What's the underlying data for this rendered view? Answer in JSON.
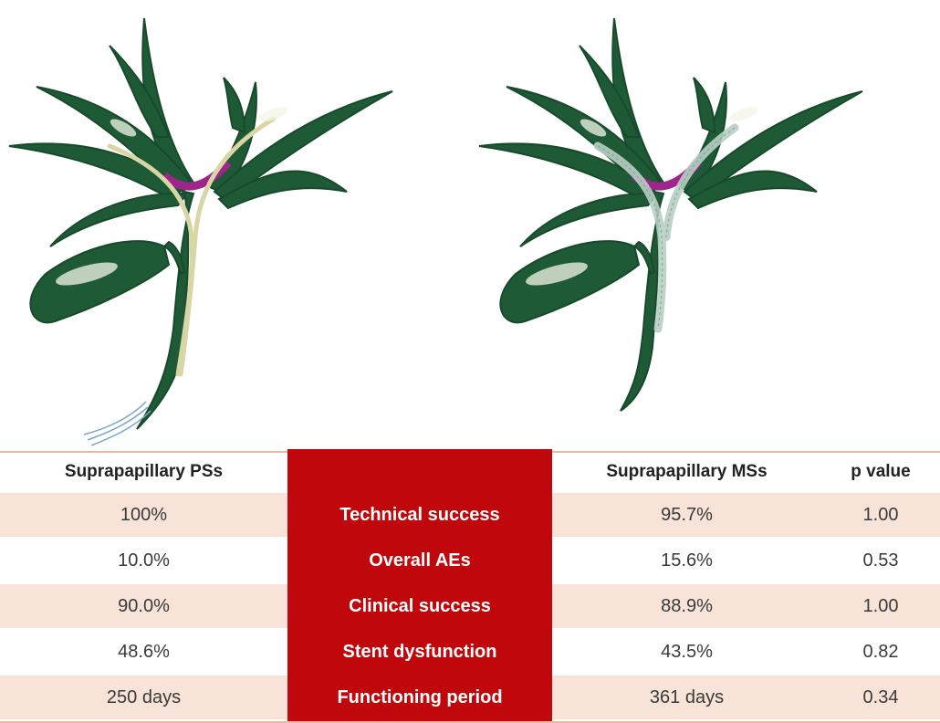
{
  "illustrations": {
    "left": "Biliary tree with suprapapillary plastic stents",
    "right": "Biliary tree with suprapapillary metal stents"
  },
  "colors": {
    "duct_green": "#1f5a36",
    "stricture_purple": "#a0248c",
    "plastic_stent": "#d9d6a6",
    "metal_stent": "#b7cfc4",
    "table_accent": "#c0080c",
    "row_shade": "#f7e3d8"
  },
  "table": {
    "headers": {
      "col1": "Suprapapillary PSs",
      "col2": "",
      "col3": "Suprapapillary MSs",
      "col4": "p value"
    },
    "rows": [
      {
        "ps": "100%",
        "metric": "Technical success",
        "ms": "95.7%",
        "p": "1.00"
      },
      {
        "ps": "10.0%",
        "metric": "Overall AEs",
        "ms": "15.6%",
        "p": "0.53"
      },
      {
        "ps": "90.0%",
        "metric": "Clinical success",
        "ms": "88.9%",
        "p": "1.00"
      },
      {
        "ps": "48.6%",
        "metric": "Stent dysfunction",
        "ms": "43.5%",
        "p": "0.82"
      },
      {
        "ps": "250 days",
        "metric": "Functioning period",
        "ms": "361 days",
        "p": "0.34"
      }
    ]
  }
}
